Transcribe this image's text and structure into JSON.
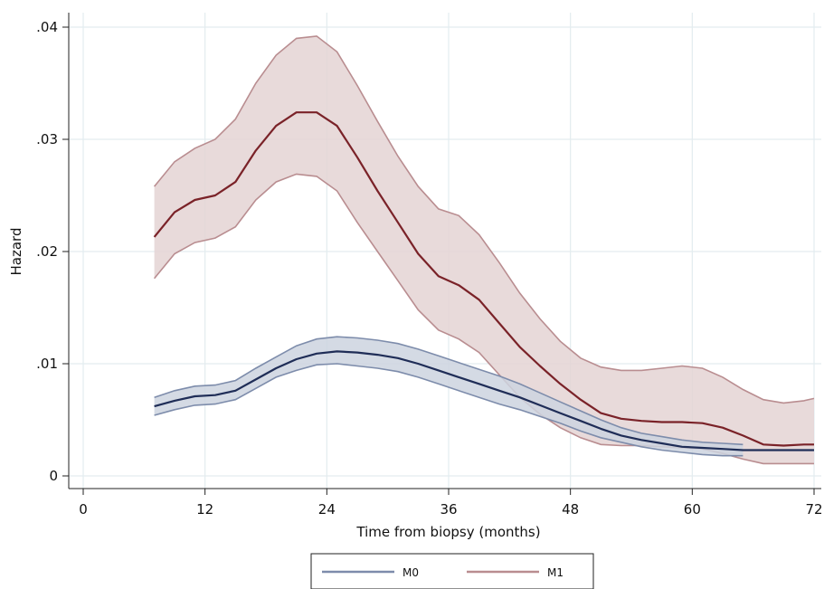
{
  "chart_data": {
    "type": "line",
    "xlabel": "Time from biopsy (months)",
    "ylabel": "Hazard",
    "xlim": [
      0,
      72
    ],
    "ylim": [
      0,
      0.04
    ],
    "x_ticks": [
      0,
      12,
      24,
      36,
      48,
      60,
      72
    ],
    "x_tick_labels": [
      "0",
      "12",
      "24",
      "36",
      "48",
      "60",
      "72"
    ],
    "y_ticks": [
      0,
      0.01,
      0.02,
      0.03,
      0.04
    ],
    "y_tick_labels": [
      "0",
      ".01",
      ".02",
      ".03",
      ".04"
    ],
    "grid": true,
    "legend_position": "bottom",
    "series": [
      {
        "name": "M0",
        "color": "#1f2d57",
        "band_color": "#cdd3df",
        "band_edge_color": "#7d8cab",
        "x": [
          7,
          9,
          11,
          13,
          15,
          17,
          19,
          21,
          23,
          25,
          27,
          29,
          31,
          33,
          35,
          37,
          39,
          41,
          43,
          45,
          47,
          49,
          51,
          53,
          55,
          57,
          59,
          61,
          63,
          65,
          67,
          69,
          71,
          72
        ],
        "y": [
          0.0062,
          0.0067,
          0.0071,
          0.0072,
          0.0076,
          0.0086,
          0.0096,
          0.0104,
          0.0109,
          0.0111,
          0.011,
          0.0108,
          0.0105,
          0.01,
          0.0094,
          0.0088,
          0.0082,
          0.0076,
          0.007,
          0.0063,
          0.0056,
          0.0049,
          0.0042,
          0.0036,
          0.0032,
          0.0029,
          0.0026,
          0.0025,
          0.0024,
          0.0023,
          0.0023,
          0.0023,
          0.0023,
          0.0023
        ],
        "lower": [
          0.0054,
          0.0059,
          0.0063,
          0.0064,
          0.0068,
          0.0078,
          0.0088,
          0.0094,
          0.0099,
          0.01,
          0.0098,
          0.0096,
          0.0093,
          0.0088,
          0.0082,
          0.0076,
          0.007,
          0.0064,
          0.0059,
          0.0053,
          0.0047,
          0.004,
          0.0034,
          0.003,
          0.0026,
          0.0023,
          0.0021,
          0.0019,
          0.0018,
          0.0018,
          null,
          null,
          null,
          null
        ],
        "upper": [
          0.007,
          0.0076,
          0.008,
          0.0081,
          0.0085,
          0.0096,
          0.0106,
          0.0116,
          0.0122,
          0.0124,
          0.0123,
          0.0121,
          0.0118,
          0.0113,
          0.0107,
          0.0101,
          0.0095,
          0.0089,
          0.0082,
          0.0074,
          0.0066,
          0.0058,
          0.005,
          0.0043,
          0.0038,
          0.0035,
          0.0032,
          0.003,
          0.0029,
          0.0028,
          null,
          null,
          null,
          null
        ]
      },
      {
        "name": "M1",
        "color": "#7a2228",
        "band_color": "#e4d3d4",
        "band_edge_color": "#b98d90",
        "x": [
          7,
          9,
          11,
          13,
          15,
          17,
          19,
          21,
          23,
          25,
          27,
          29,
          31,
          33,
          35,
          37,
          39,
          41,
          43,
          45,
          47,
          49,
          51,
          53,
          55,
          57,
          59,
          61,
          63,
          65,
          67,
          69,
          71,
          72
        ],
        "y": [
          0.0213,
          0.0235,
          0.0246,
          0.025,
          0.0262,
          0.029,
          0.0312,
          0.0324,
          0.0324,
          0.0312,
          0.0284,
          0.0254,
          0.0226,
          0.0198,
          0.0178,
          0.017,
          0.0157,
          0.0136,
          0.0115,
          0.0098,
          0.0082,
          0.0068,
          0.0056,
          0.0051,
          0.0049,
          0.0048,
          0.0048,
          0.0047,
          0.0043,
          0.0036,
          0.0028,
          0.0027,
          0.0028,
          0.0028
        ],
        "lower": [
          0.0176,
          0.0198,
          0.0208,
          0.0212,
          0.0222,
          0.0246,
          0.0262,
          0.0269,
          0.0267,
          0.0254,
          0.0226,
          0.02,
          0.0174,
          0.0148,
          0.013,
          0.0122,
          0.011,
          0.009,
          0.007,
          0.0055,
          0.0043,
          0.0034,
          0.0028,
          0.0027,
          0.0027,
          0.0026,
          0.0025,
          0.0024,
          0.002,
          0.0015,
          0.0011,
          0.0011,
          0.0011,
          0.0011
        ],
        "upper": [
          0.0258,
          0.028,
          0.0292,
          0.03,
          0.0318,
          0.035,
          0.0375,
          0.039,
          0.0392,
          0.0378,
          0.0348,
          0.0316,
          0.0285,
          0.0258,
          0.0238,
          0.0232,
          0.0215,
          0.019,
          0.0163,
          0.014,
          0.012,
          0.0105,
          0.0097,
          0.0094,
          0.0094,
          0.0096,
          0.0098,
          0.0096,
          0.0088,
          0.0077,
          0.0068,
          0.0065,
          0.0067,
          0.0069
        ]
      }
    ]
  }
}
